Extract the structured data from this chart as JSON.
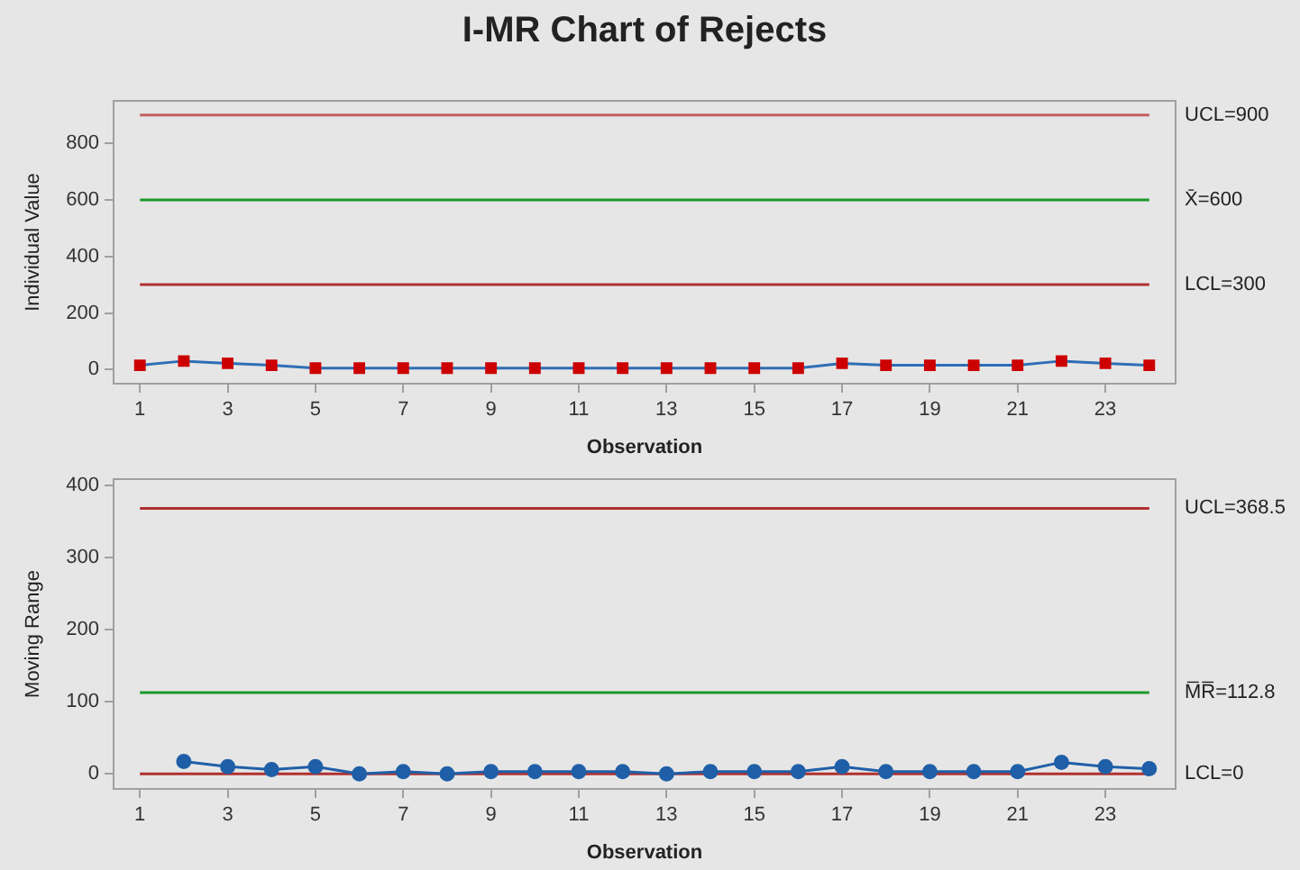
{
  "chart_data": [
    {
      "type": "line",
      "title": "I-MR Chart of Rejects",
      "xlabel": "Observation",
      "ylabel": "Individual Value",
      "x": [
        1,
        2,
        3,
        4,
        5,
        6,
        7,
        8,
        9,
        10,
        11,
        12,
        13,
        14,
        15,
        16,
        17,
        18,
        19,
        20,
        21,
        22,
        23,
        24
      ],
      "series": [
        {
          "color": "#2f6eb5",
          "colors": [
            "#cc0000",
            "#cc0000",
            "#cc0000",
            "#cc0000",
            "#cc0000",
            "#cc0000",
            "#cc0000",
            "#cc0000",
            "#cc0000",
            "#cc0000",
            "#cc0000",
            "#cc0000",
            "#cc0000",
            "#cc0000",
            "#cc0000",
            "#cc0000",
            "#cc0000",
            "#cc0000",
            "#cc0000",
            "#cc0000",
            "#cc0000",
            "#cc0000",
            "#cc0000",
            "#cc0000"
          ],
          "values": [
            15,
            30,
            22,
            15,
            5,
            5,
            5,
            5,
            5,
            5,
            5,
            5,
            5,
            5,
            5,
            5,
            22,
            15,
            15,
            15,
            15,
            30,
            22,
            15
          ]
        }
      ],
      "xlim": [
        0.4,
        24.6
      ],
      "xticks": [
        1,
        3,
        5,
        7,
        9,
        11,
        13,
        15,
        17,
        19,
        21,
        23
      ],
      "ylim": [
        -50,
        950
      ],
      "yticks": [
        0,
        200,
        400,
        600,
        800
      ],
      "ref_lines": [
        {
          "axis": "y",
          "value": 900,
          "label": "UCL=900",
          "color": "#c06060"
        },
        {
          "axis": "y",
          "value": 600,
          "label": "X̄=600",
          "color": "#1a9a2a"
        },
        {
          "axis": "y",
          "value": 300,
          "label": "LCL=300",
          "color": "#b03030"
        }
      ],
      "marker": "square",
      "grid": false,
      "legend": false
    },
    {
      "type": "line",
      "xlabel": "Observation",
      "ylabel": "Moving Range",
      "series": [
        {
          "color": "#1f5fa8",
          "x": [
            2,
            3,
            4,
            5,
            6,
            7,
            8,
            9,
            10,
            11,
            12,
            13,
            14,
            15,
            16,
            17,
            18,
            19,
            20,
            21,
            22,
            23,
            24
          ],
          "values": [
            17,
            10,
            6,
            10,
            0,
            3,
            0,
            3,
            3,
            3,
            3,
            0,
            3,
            3,
            3,
            10,
            3,
            3,
            3,
            3,
            16,
            10,
            7
          ]
        }
      ],
      "xlim": [
        0.4,
        24.6
      ],
      "xticks": [
        1,
        3,
        5,
        7,
        9,
        11,
        13,
        15,
        17,
        19,
        21,
        23
      ],
      "ylim": [
        -21,
        409
      ],
      "yticks": [
        0,
        100,
        200,
        300,
        400
      ],
      "ref_lines": [
        {
          "axis": "y",
          "value": 368.5,
          "label": "UCL=368.5",
          "color": "#b03030"
        },
        {
          "axis": "y",
          "value": 112.8,
          "label": "M̅R̅=112.8",
          "color": "#1a9a2a"
        },
        {
          "axis": "y",
          "value": 0,
          "label": "LCL=0",
          "color": "#b03030"
        }
      ],
      "marker": "circle",
      "grid": false,
      "legend": false
    }
  ]
}
